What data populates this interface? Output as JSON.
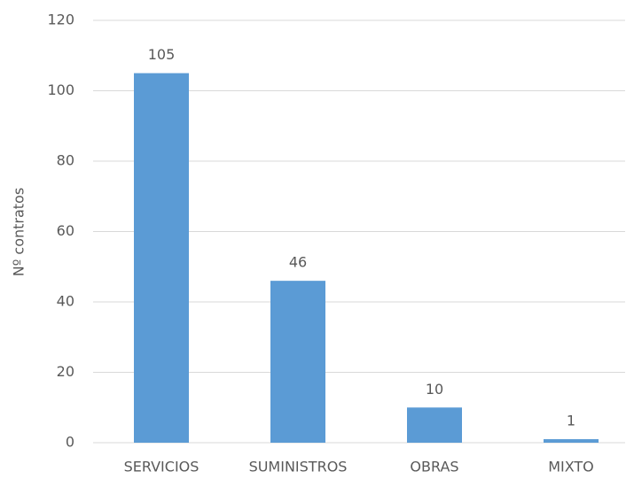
{
  "chart_data": {
    "type": "bar",
    "y_label": "Nº contratos",
    "categories": [
      "SERVICIOS",
      "SUMINISTROS",
      "OBRAS",
      "MIXTO"
    ],
    "values": [
      105,
      46,
      10,
      1
    ],
    "color": "#5b9bd5",
    "ylim": [
      0,
      120
    ],
    "yticks": [
      0,
      20,
      40,
      60,
      80,
      100,
      120
    ],
    "grid": true
  }
}
